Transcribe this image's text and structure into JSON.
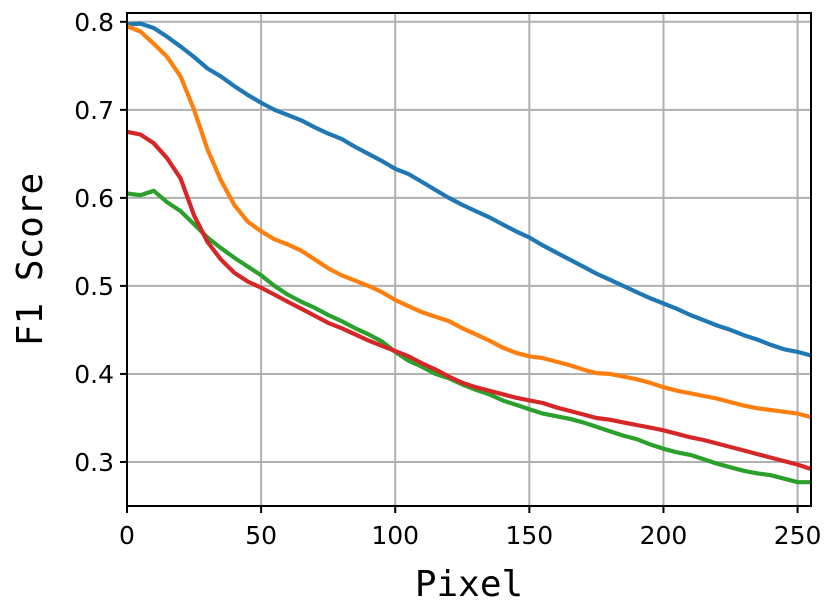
{
  "chart_data": {
    "type": "line",
    "xlabel": "Pixel",
    "ylabel": "F1 Score",
    "xlim": [
      0,
      255
    ],
    "ylim": [
      0.25,
      0.81
    ],
    "xticks": [
      0,
      50,
      100,
      150,
      200,
      250
    ],
    "yticks": [
      0.3,
      0.4,
      0.5,
      0.6,
      0.7,
      0.8
    ],
    "grid": true,
    "series": [
      {
        "color": "#1f77b4",
        "x": [
          0,
          5,
          10,
          15,
          20,
          25,
          30,
          35,
          40,
          45,
          50,
          55,
          60,
          65,
          70,
          75,
          80,
          85,
          90,
          95,
          100,
          105,
          110,
          115,
          120,
          125,
          130,
          135,
          140,
          145,
          150,
          155,
          160,
          165,
          170,
          175,
          180,
          185,
          190,
          195,
          200,
          205,
          210,
          215,
          220,
          225,
          230,
          235,
          240,
          245,
          250,
          255
        ],
        "y": [
          0.797,
          0.798,
          0.793,
          0.783,
          0.772,
          0.76,
          0.747,
          0.738,
          0.727,
          0.717,
          0.708,
          0.7,
          0.694,
          0.688,
          0.68,
          0.673,
          0.667,
          0.658,
          0.65,
          0.642,
          0.633,
          0.627,
          0.618,
          0.609,
          0.6,
          0.592,
          0.585,
          0.578,
          0.57,
          0.562,
          0.555,
          0.546,
          0.538,
          0.53,
          0.522,
          0.514,
          0.507,
          0.5,
          0.493,
          0.486,
          0.48,
          0.474,
          0.467,
          0.461,
          0.455,
          0.45,
          0.444,
          0.439,
          0.433,
          0.428,
          0.425,
          0.421
        ]
      },
      {
        "color": "#ff7f0e",
        "x": [
          0,
          5,
          10,
          15,
          20,
          25,
          30,
          35,
          40,
          45,
          50,
          55,
          60,
          65,
          70,
          75,
          80,
          85,
          90,
          95,
          100,
          105,
          110,
          115,
          120,
          125,
          130,
          135,
          140,
          145,
          150,
          155,
          160,
          165,
          170,
          175,
          180,
          185,
          190,
          195,
          200,
          205,
          210,
          215,
          220,
          225,
          230,
          235,
          240,
          245,
          250,
          255
        ],
        "y": [
          0.795,
          0.789,
          0.775,
          0.76,
          0.738,
          0.7,
          0.655,
          0.62,
          0.592,
          0.573,
          0.562,
          0.553,
          0.547,
          0.54,
          0.53,
          0.52,
          0.512,
          0.506,
          0.5,
          0.493,
          0.484,
          0.477,
          0.47,
          0.465,
          0.46,
          0.452,
          0.445,
          0.438,
          0.43,
          0.424,
          0.42,
          0.418,
          0.414,
          0.41,
          0.405,
          0.401,
          0.4,
          0.397,
          0.394,
          0.39,
          0.385,
          0.381,
          0.378,
          0.375,
          0.372,
          0.368,
          0.364,
          0.361,
          0.359,
          0.357,
          0.355,
          0.351
        ]
      },
      {
        "color": "#2ca02c",
        "x": [
          0,
          5,
          10,
          15,
          20,
          25,
          30,
          35,
          40,
          45,
          50,
          55,
          60,
          65,
          70,
          75,
          80,
          85,
          90,
          95,
          100,
          105,
          110,
          115,
          120,
          125,
          130,
          135,
          140,
          145,
          150,
          155,
          160,
          165,
          170,
          175,
          180,
          185,
          190,
          195,
          200,
          205,
          210,
          215,
          220,
          225,
          230,
          235,
          240,
          245,
          250,
          255
        ],
        "y": [
          0.605,
          0.603,
          0.608,
          0.595,
          0.585,
          0.57,
          0.555,
          0.543,
          0.532,
          0.522,
          0.512,
          0.5,
          0.49,
          0.482,
          0.475,
          0.467,
          0.46,
          0.452,
          0.445,
          0.437,
          0.425,
          0.415,
          0.408,
          0.4,
          0.395,
          0.388,
          0.382,
          0.377,
          0.37,
          0.365,
          0.36,
          0.355,
          0.352,
          0.349,
          0.345,
          0.34,
          0.335,
          0.33,
          0.326,
          0.32,
          0.315,
          0.311,
          0.308,
          0.303,
          0.298,
          0.294,
          0.29,
          0.287,
          0.285,
          0.281,
          0.277,
          0.277
        ]
      },
      {
        "color": "#d62728",
        "x": [
          0,
          5,
          10,
          15,
          20,
          25,
          30,
          35,
          40,
          45,
          50,
          55,
          60,
          65,
          70,
          75,
          80,
          85,
          90,
          95,
          100,
          105,
          110,
          115,
          120,
          125,
          130,
          135,
          140,
          145,
          150,
          155,
          160,
          165,
          170,
          175,
          180,
          185,
          190,
          195,
          200,
          205,
          210,
          215,
          220,
          225,
          230,
          235,
          240,
          245,
          250,
          255
        ],
        "y": [
          0.675,
          0.672,
          0.662,
          0.645,
          0.622,
          0.58,
          0.55,
          0.53,
          0.515,
          0.505,
          0.498,
          0.49,
          0.482,
          0.474,
          0.466,
          0.458,
          0.452,
          0.445,
          0.438,
          0.432,
          0.426,
          0.42,
          0.412,
          0.405,
          0.397,
          0.39,
          0.385,
          0.381,
          0.377,
          0.373,
          0.37,
          0.367,
          0.362,
          0.358,
          0.354,
          0.35,
          0.348,
          0.345,
          0.342,
          0.339,
          0.336,
          0.332,
          0.328,
          0.325,
          0.321,
          0.317,
          0.313,
          0.309,
          0.305,
          0.301,
          0.297,
          0.292
        ]
      }
    ]
  }
}
